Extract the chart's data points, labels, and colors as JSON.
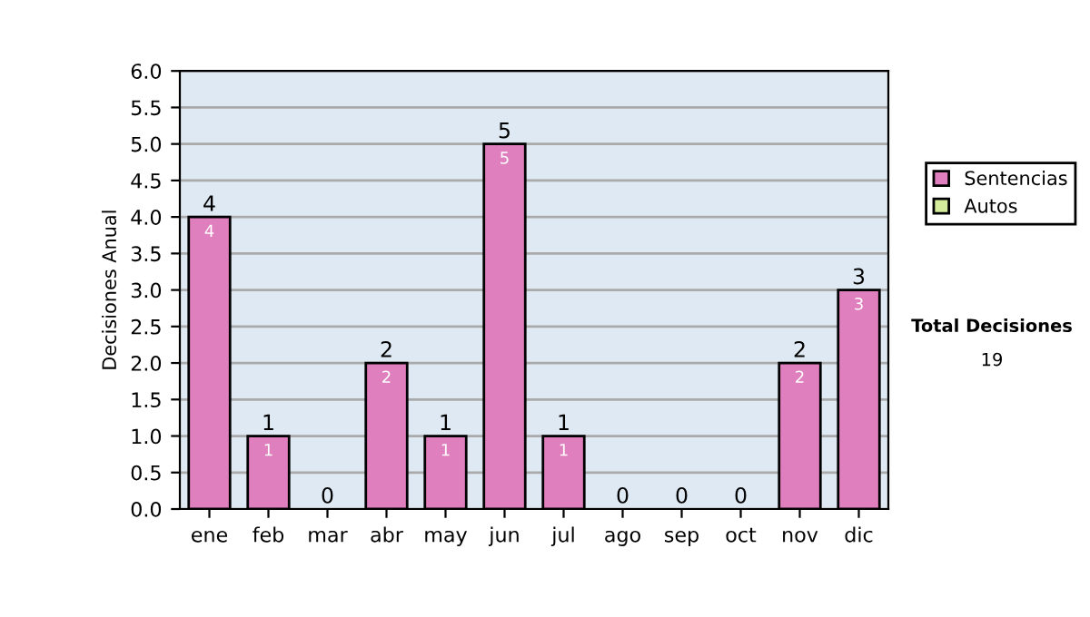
{
  "chart_data": {
    "type": "bar",
    "ylabel": "Decisiones Anual",
    "stacked": true,
    "categories": [
      "ene",
      "feb",
      "mar",
      "abr",
      "may",
      "jun",
      "jul",
      "ago",
      "sep",
      "oct",
      "nov",
      "dic"
    ],
    "series": [
      {
        "name": "Sentencias",
        "color": "#e07fbe",
        "values": [
          4,
          1,
          0,
          2,
          1,
          5,
          1,
          0,
          0,
          0,
          2,
          3
        ],
        "value_labels": [
          "4",
          "1",
          null,
          "2",
          "1",
          "5",
          "1",
          null,
          null,
          null,
          "2",
          "3"
        ]
      },
      {
        "name": "Autos",
        "color": "#d4ec9c",
        "values": [
          0,
          0,
          0,
          0,
          0,
          0,
          0,
          0,
          0,
          0,
          0,
          0
        ]
      }
    ],
    "totals": [
      "4",
      "1",
      "0",
      "2",
      "1",
      "5",
      "1",
      "0",
      "0",
      "0",
      "2",
      "3"
    ],
    "ylim": [
      0,
      6
    ],
    "yticks": [
      {
        "value": 0,
        "label": "0.0"
      },
      {
        "value": 0.5,
        "label": "0.5"
      },
      {
        "value": 1,
        "label": "1.0"
      },
      {
        "value": 1.5,
        "label": "1.5"
      },
      {
        "value": 2,
        "label": "2.0"
      },
      {
        "value": 2.5,
        "label": "2.5"
      },
      {
        "value": 3,
        "label": "3.0"
      },
      {
        "value": 3.5,
        "label": "3.5"
      },
      {
        "value": 4,
        "label": "4.0"
      },
      {
        "value": 4.5,
        "label": "4.5"
      },
      {
        "value": 5,
        "label": "5.0"
      },
      {
        "value": 5.5,
        "label": "5.5"
      },
      {
        "value": 6,
        "label": "6.0"
      }
    ],
    "grid": "y",
    "legend": "right",
    "annotations": [
      "Total Decisiones",
      "19"
    ]
  }
}
